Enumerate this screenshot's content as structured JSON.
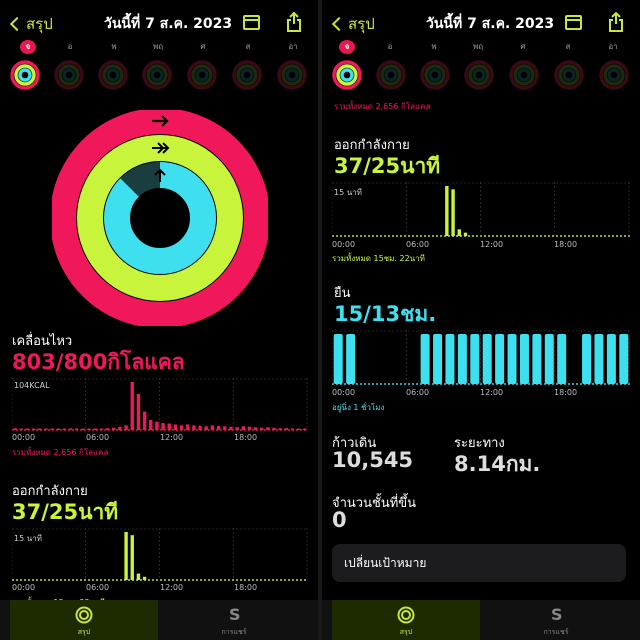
{
  "header": {
    "back_label": "สรุป",
    "title": "วันนี้ที่ 7 ส.ค. 2023"
  },
  "days": [
    "จ",
    "อ",
    "พ",
    "พฤ",
    "ศ",
    "ส",
    "อา"
  ],
  "move": {
    "label": "เคลื่อนไหว",
    "value": "803/800กิโลแคล",
    "scale_label": "104KCAL",
    "total": "รวมทั้งหมด 2,656 กิโลแคล"
  },
  "exercise": {
    "label": "ออกกำลังกาย",
    "value": "37/25นาที",
    "scale_label": "15 นาที",
    "total": "รวมทั้งหมด 15ชม. 22นาที",
    "total_partial": "รวมทั้งหมด 15ชม. 22นาที"
  },
  "stand": {
    "label": "ยืน",
    "value": "15/13ชม.",
    "total": "อยู่นิ่ง 1 ชั่วโมง"
  },
  "top_partial_total": "รวมทั้งหมด 2,656 กิโลแคล",
  "time_ticks": [
    "00:00",
    "06:00",
    "12:00",
    "18:00"
  ],
  "steps": {
    "label": "ก้าวเดิน",
    "value": "10,545"
  },
  "distance": {
    "label": "ระยะทาง",
    "value": "8.14กม."
  },
  "flights": {
    "label": "จำนวนชั้นที่ขึ้น",
    "value": "0"
  },
  "change_goal_button": "เปลี่ยนเป้าหมาย",
  "tabs": {
    "summary": "สรุป",
    "sharing": "การแชร์"
  },
  "colors": {
    "move": "#f0185a",
    "exercise": "#c8f53c",
    "stand": "#3ee0f0"
  },
  "chart_data": [
    {
      "type": "bar",
      "series": [
        {
          "name": "เคลื่อนไหว",
          "values": [
            4,
            3,
            3,
            3,
            2,
            3,
            2,
            3,
            3,
            2,
            3,
            2,
            2,
            3,
            3,
            4,
            5,
            7,
            10,
            104,
            78,
            40,
            22,
            18,
            15,
            14,
            12,
            10,
            12,
            10,
            9,
            8,
            10,
            9,
            8,
            7,
            6,
            8,
            7,
            6,
            5,
            6,
            5,
            4,
            4,
            3,
            3,
            3
          ]
        }
      ],
      "ylim": [
        0,
        104
      ]
    },
    {
      "type": "bar",
      "series": [
        {
          "name": "ออกกำลังกาย",
          "values": [
            0,
            0,
            0,
            0,
            0,
            0,
            0,
            0,
            0,
            0,
            0,
            0,
            0,
            0,
            0,
            0,
            0,
            0,
            15,
            14,
            2,
            1,
            0,
            0,
            0,
            0,
            0,
            0,
            0,
            0,
            0,
            0,
            0,
            0,
            0,
            0,
            0,
            0,
            0,
            0,
            0,
            0,
            0,
            0,
            0,
            0,
            0,
            0
          ]
        }
      ],
      "ylim": [
        0,
        15
      ]
    },
    {
      "type": "bar",
      "series": [
        {
          "name": "ยืน",
          "values": [
            1,
            1,
            0,
            0,
            0,
            0,
            0,
            1,
            1,
            1,
            1,
            1,
            1,
            1,
            1,
            1,
            1,
            1,
            1,
            0,
            1,
            1,
            1,
            1
          ]
        }
      ],
      "ylim": [
        0,
        1
      ]
    }
  ]
}
